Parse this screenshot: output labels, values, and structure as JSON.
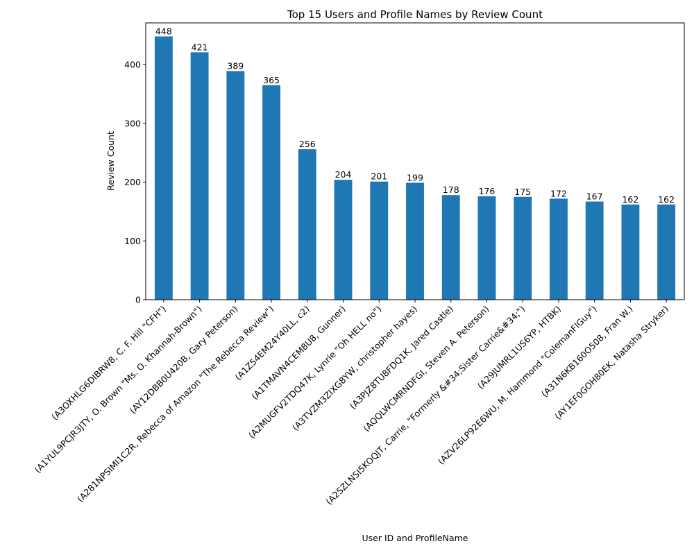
{
  "chart_data": {
    "type": "bar",
    "title": "Top 15 Users and Profile Names by Review Count",
    "xlabel": "User ID and ProfileName",
    "ylabel": "Review Count",
    "ylim": [
      0,
      471
    ],
    "yticks": [
      0,
      100,
      200,
      300,
      400
    ],
    "grid": false,
    "bar_color": "#1f77b4",
    "categories": [
      "(A3OXHLG6DIBRW8, C. F. Hill \"CFH\")",
      "(A1YUL9PCJR3JTY, O. Brown \"Ms. O. Khannah-Brown\")",
      "(AY12DBB0U420B, Gary Peterson)",
      "(A281NPSIMI1C2R, Rebecca of Amazon \"The Rebecca Review\")",
      "(A1Z54EM24Y40LL, c2)",
      "(A1TMAVN4CEM8U8, Gunner)",
      "(A2MUGFV2TDQ47K, Lynrie \"Oh HELL no\")",
      "(A3TVZM3ZIXG8YW, christopher hayes)",
      "(A3PJZ8TU8FDQ1K, Jared Castle)",
      "(AQQLWCMRNDFGI, Steven A. Peterson)",
      "(A2SZLNSI5KOQJT, Carrie, \"Formerly &#34;Sister Carrie&#34;\")",
      "(A29JUMRL1US6YP, HTBK)",
      "(AZV26LP92E6WU, M. Hammond \"ColemanFlGuy\")",
      "(A31N6KB160O508, Fran W.)",
      "(AY1EF0GOH80EK, Natasha Stryker)"
    ],
    "values": [
      448,
      421,
      389,
      365,
      256,
      204,
      201,
      199,
      178,
      176,
      175,
      172,
      167,
      162,
      162
    ]
  }
}
